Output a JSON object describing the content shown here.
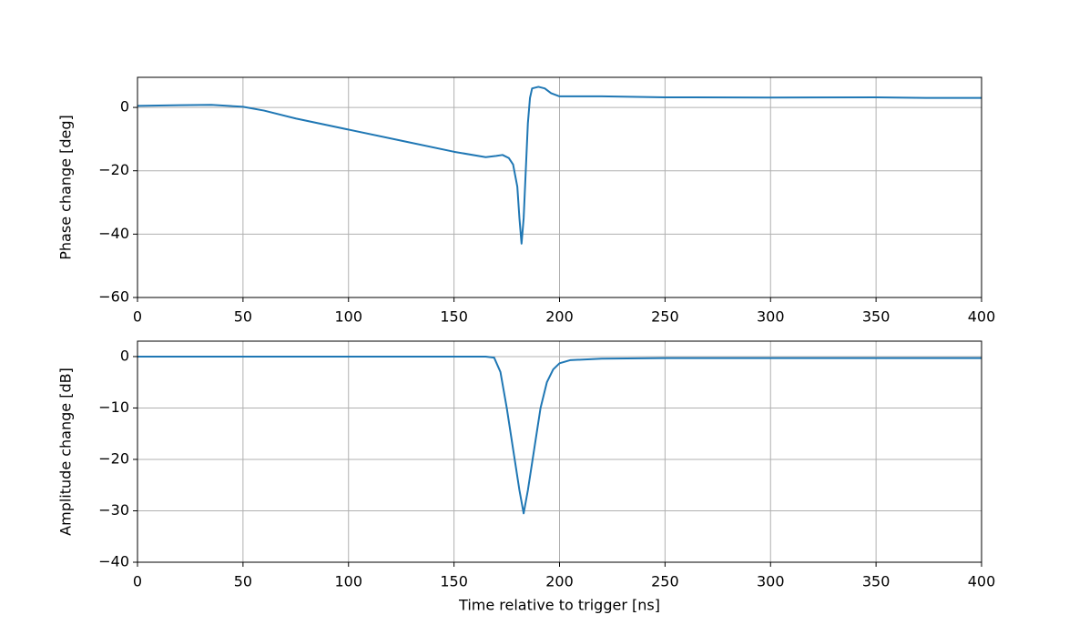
{
  "chart_data": [
    {
      "type": "line",
      "ylabel": "Phase change [deg]",
      "color": "#1f77b4",
      "grid": true,
      "x": [
        0,
        20,
        35,
        50,
        60,
        75,
        100,
        125,
        150,
        165,
        170,
        173,
        176,
        178,
        180,
        181,
        182,
        183,
        184,
        185,
        186,
        187,
        190,
        193,
        196,
        200,
        220,
        250,
        300,
        350,
        375,
        400
      ],
      "values": [
        0.5,
        0.7,
        0.8,
        0.2,
        -1,
        -3.5,
        -7,
        -10.5,
        -14,
        -15.7,
        -15.3,
        -15,
        -16,
        -18,
        -25,
        -35,
        -43,
        -35,
        -20,
        -5,
        3,
        6,
        6.5,
        6,
        4.5,
        3.5,
        3.5,
        3.2,
        3.1,
        3.2,
        3.0,
        3.0
      ],
      "xlim": [
        0,
        400
      ],
      "ylim": [
        -60,
        9.5
      ],
      "xticks": [
        0,
        50,
        100,
        150,
        200,
        250,
        300,
        350,
        400
      ],
      "yticks": [
        {
          "value": -60,
          "label": "−60"
        },
        {
          "value": -40,
          "label": "−40"
        },
        {
          "value": -20,
          "label": "−20"
        },
        0
      ]
    },
    {
      "type": "line",
      "ylabel": "Amplitude change [dB]",
      "xlabel": "Time relative to trigger [ns]",
      "color": "#1f77b4",
      "grid": true,
      "x": [
        0,
        150,
        165,
        169,
        172,
        175,
        178,
        181,
        183,
        185,
        188,
        191,
        194,
        197,
        200,
        205,
        220,
        250,
        300,
        400
      ],
      "values": [
        0,
        0,
        0,
        -0.2,
        -3,
        -10,
        -18,
        -26,
        -30.5,
        -26,
        -18,
        -10,
        -5,
        -2.5,
        -1.3,
        -0.7,
        -0.4,
        -0.3,
        -0.3,
        -0.3
      ],
      "xlim": [
        0,
        400
      ],
      "ylim": [
        -40,
        3
      ],
      "xticks": [
        0,
        50,
        100,
        150,
        200,
        250,
        300,
        350,
        400
      ],
      "yticks": [
        {
          "value": -40,
          "label": "−40"
        },
        {
          "value": -30,
          "label": "−30"
        },
        {
          "value": -20,
          "label": "−20"
        },
        {
          "value": -10,
          "label": "−10"
        },
        0
      ]
    }
  ]
}
